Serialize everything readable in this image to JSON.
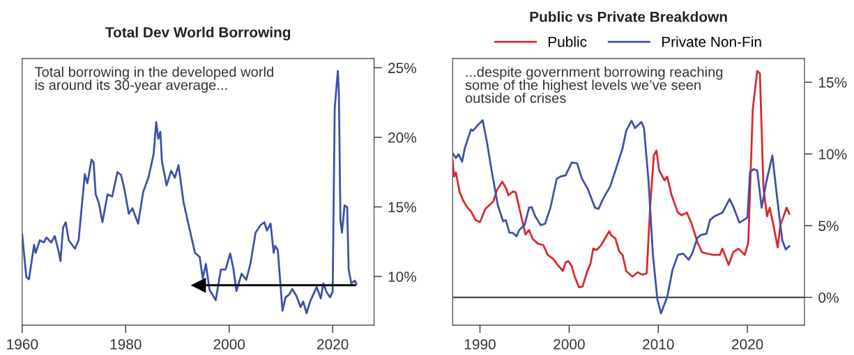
{
  "chart_data": [
    {
      "type": "line",
      "title": "Total Dev World Borrowing",
      "annotations": [
        "Total borrowing in the developed world\nis around its 30-year average..."
      ],
      "xlim": [
        1960,
        2028
      ],
      "xticks": [
        1960,
        1980,
        2000,
        2020
      ],
      "ylim": [
        6.5,
        25.66
      ],
      "yticks": [
        {
          "value": 10,
          "label": "10%"
        },
        {
          "value": 15,
          "label": "15%"
        },
        {
          "value": 20,
          "label": "20%"
        },
        {
          "value": 25,
          "label": "25%"
        }
      ],
      "grid": false,
      "legend": false,
      "series": [
        {
          "color": "#3f51a8",
          "x": [
            1960.0,
            1960.8,
            1961.3,
            1962.3,
            1962.6,
            1963.4,
            1964.2,
            1964.7,
            1965.6,
            1966.3,
            1967.1,
            1967.4,
            1967.9,
            1968.4,
            1969.0,
            1970.2,
            1970.9,
            1972.1,
            1972.6,
            1973.4,
            1973.8,
            1974.2,
            1974.8,
            1975.5,
            1976.5,
            1977.4,
            1978.4,
            1979.1,
            1979.8,
            1980.6,
            1981.3,
            1982.4,
            1983.4,
            1984.4,
            1985.4,
            1985.9,
            1986.3,
            1986.7,
            1987.0,
            1987.9,
            1988.8,
            1989.5,
            1990.2,
            1991.2,
            1992.6,
            1993.4,
            1994.3,
            1994.9,
            1995.5,
            1996.2,
            1997.4,
            1998.4,
            1999.3,
            2000.2,
            2000.8,
            2001.4,
            2002.4,
            2003.3,
            2004.1,
            2005.1,
            2006.1,
            2006.8,
            2007.3,
            2008.0,
            2008.6,
            2008.9,
            2009.4,
            2010.3,
            2010.9,
            2011.6,
            2012.2,
            2013.0,
            2013.8,
            2014.3,
            2014.96,
            2015.7,
            2016.9,
            2017.7,
            2018.2,
            2018.8,
            2019.5,
            2020.0,
            2020.4,
            2021.0,
            2021.2,
            2021.5,
            2021.8,
            2022.3,
            2022.8,
            2023.1,
            2023.6,
            2024.3,
            2024.6
          ],
          "values": [
            12.98,
            9.95,
            9.8,
            12.27,
            11.7,
            12.6,
            12.45,
            12.8,
            12.45,
            12.9,
            11.7,
            11.1,
            13.5,
            13.9,
            12.6,
            12.0,
            12.6,
            17.35,
            16.7,
            18.4,
            18.2,
            15.9,
            15.3,
            13.9,
            15.9,
            15.75,
            17.5,
            17.3,
            16.2,
            14.5,
            14.9,
            13.8,
            16.1,
            17.1,
            18.8,
            21.1,
            19.9,
            20.4,
            18.3,
            16.55,
            17.6,
            17.1,
            18.0,
            15.3,
            12.98,
            11.7,
            11.4,
            9.86,
            10.9,
            9.05,
            8.3,
            10.5,
            10.5,
            11.65,
            10.6,
            8.96,
            10.2,
            9.77,
            10.9,
            13.15,
            13.7,
            13.9,
            13.3,
            13.8,
            11.7,
            12.2,
            11.9,
            7.54,
            8.5,
            8.7,
            9.1,
            8.6,
            7.8,
            8.2,
            7.36,
            8.25,
            9.23,
            8.43,
            9.5,
            8.9,
            8.5,
            8.9,
            22.1,
            24.77,
            23.3,
            14.05,
            13.15,
            15.1,
            15.0,
            10.5,
            9.5,
            9.7,
            9.45
          ]
        },
        {
          "color": "#000000",
          "marker": "triangle",
          "x": [
            1994.1,
            2024.3
          ],
          "values": [
            9.37,
            9.37
          ]
        }
      ]
    },
    {
      "type": "line",
      "title": "Public vs Private Breakdown",
      "annotations": [
        "...despite government borrowing reaching\nsome of the highest levels we’ve seen\noutside of crises"
      ],
      "xlim": [
        1986.93,
        2026.4
      ],
      "xticks": [
        1990,
        2000,
        2010,
        2020
      ],
      "ylim": [
        -1.94,
        16.65
      ],
      "yticks": [
        {
          "value": 0,
          "label": "0%"
        },
        {
          "value": 5,
          "label": "5%"
        },
        {
          "value": 10,
          "label": "10%"
        },
        {
          "value": 15,
          "label": "15%"
        }
      ],
      "grid": false,
      "legend": "top",
      "ref_lines": [
        {
          "axis": "y",
          "value": 0,
          "label": null,
          "color": "#333333"
        }
      ],
      "series": [
        {
          "name": "Public",
          "color": "#d9282f",
          "x": [
            1986.93,
            1987.1,
            1987.3,
            1987.7,
            1988.1,
            1988.5,
            1989.0,
            1989.5,
            1990.0,
            1990.6,
            1991.2,
            1991.5,
            1991.9,
            1992.5,
            1992.9,
            1993.2,
            1993.7,
            1994.0,
            1994.6,
            1995.1,
            1995.5,
            1995.9,
            1996.5,
            1997.1,
            1997.6,
            1998.2,
            1998.7,
            1999.3,
            1999.6,
            1999.9,
            2000.3,
            2000.6,
            2001.1,
            2001.5,
            2002.0,
            2002.4,
            2002.7,
            2003.1,
            2003.6,
            2004.5,
            2004.7,
            2005.2,
            2005.6,
            2006.0,
            2006.4,
            2007.1,
            2007.7,
            2008.2,
            2008.7,
            2009.1,
            2009.5,
            2009.8,
            2010.1,
            2010.7,
            2011.0,
            2011.5,
            2012.2,
            2012.6,
            2013.2,
            2013.7,
            2014.4,
            2014.9,
            2015.5,
            2016.2,
            2016.9,
            2017.2,
            2017.9,
            2018.4,
            2019.0,
            2019.7,
            2020.1,
            2020.6,
            2021.1,
            2021.4,
            2021.8,
            2022.2,
            2022.5,
            2022.8,
            2023.4,
            2023.7,
            2024.4,
            2024.7
          ],
          "values": [
            9.54,
            8.42,
            8.71,
            7.38,
            6.77,
            6.34,
            5.99,
            5.39,
            5.25,
            6.17,
            6.51,
            6.69,
            7.47,
            8.07,
            7.64,
            7.12,
            7.38,
            7.33,
            5.73,
            4.38,
            4.69,
            4.09,
            3.74,
            3.65,
            2.96,
            2.7,
            2.27,
            1.84,
            2.44,
            2.53,
            2.18,
            1.49,
            0.71,
            0.74,
            1.75,
            2.36,
            3.4,
            3.31,
            3.65,
            4.61,
            4.35,
            4.09,
            3.22,
            2.96,
            1.84,
            1.44,
            1.75,
            1.58,
            1.66,
            6.43,
            9.89,
            10.24,
            8.85,
            8.16,
            8.42,
            7.12,
            5.91,
            5.73,
            5.91,
            5.21,
            3.83,
            3.14,
            3.05,
            2.96,
            2.96,
            3.4,
            2.27,
            3.14,
            3.4,
            2.96,
            3.83,
            13.1,
            15.78,
            15.61,
            7.64,
            5.65,
            6.25,
            5.39,
            3.48,
            5.04,
            6.25,
            5.82
          ]
        },
        {
          "name": "Private Non-Fin",
          "color": "#3f51a8",
          "x": [
            1986.93,
            1987.3,
            1987.6,
            1988.0,
            1988.3,
            1989.0,
            1989.2,
            1989.7,
            1990.3,
            1990.8,
            1991.3,
            1992.0,
            1992.6,
            1992.9,
            1993.3,
            1993.7,
            1994.1,
            1994.4,
            1995.0,
            1995.5,
            1995.8,
            1996.2,
            1996.8,
            1997.3,
            1997.9,
            1998.6,
            1999.0,
            1999.6,
            2000.3,
            2000.9,
            2001.4,
            2002.1,
            2002.9,
            2003.3,
            2003.8,
            2004.6,
            2005.2,
            2006.0,
            2006.4,
            2007.0,
            2007.4,
            2008.1,
            2008.4,
            2008.9,
            2009.4,
            2009.9,
            2010.3,
            2011.0,
            2011.6,
            2012.2,
            2012.8,
            2013.4,
            2013.8,
            2014.4,
            2014.8,
            2015.4,
            2015.8,
            2016.3,
            2017.2,
            2018.0,
            2018.4,
            2019.1,
            2020.0,
            2020.3,
            2020.7,
            2021.1,
            2021.6,
            2022.1,
            2022.8,
            2023.3,
            2023.9,
            2024.3,
            2024.7
          ],
          "values": [
            10.06,
            9.72,
            9.98,
            9.46,
            10.41,
            11.71,
            11.62,
            11.97,
            12.35,
            10.76,
            8.85,
            6.43,
            5.3,
            5.39,
            4.52,
            4.49,
            4.26,
            4.69,
            5.04,
            6.25,
            6.29,
            5.65,
            5.04,
            5.13,
            6.25,
            8.25,
            8.42,
            8.51,
            9.41,
            9.34,
            8.33,
            7.55,
            6.25,
            6.17,
            6.86,
            7.73,
            8.85,
            10.41,
            11.62,
            12.32,
            11.8,
            12.23,
            11.8,
            8.16,
            2.96,
            -0.16,
            -1.11,
            0.02,
            1.92,
            2.96,
            3.05,
            2.62,
            3.05,
            4.17,
            4.35,
            4.43,
            5.39,
            5.65,
            5.91,
            6.86,
            6.34,
            5.21,
            5.56,
            8.77,
            8.94,
            8.85,
            6.25,
            7.99,
            9.89,
            7.12,
            4.0,
            3.34,
            3.57
          ]
        }
      ]
    }
  ]
}
